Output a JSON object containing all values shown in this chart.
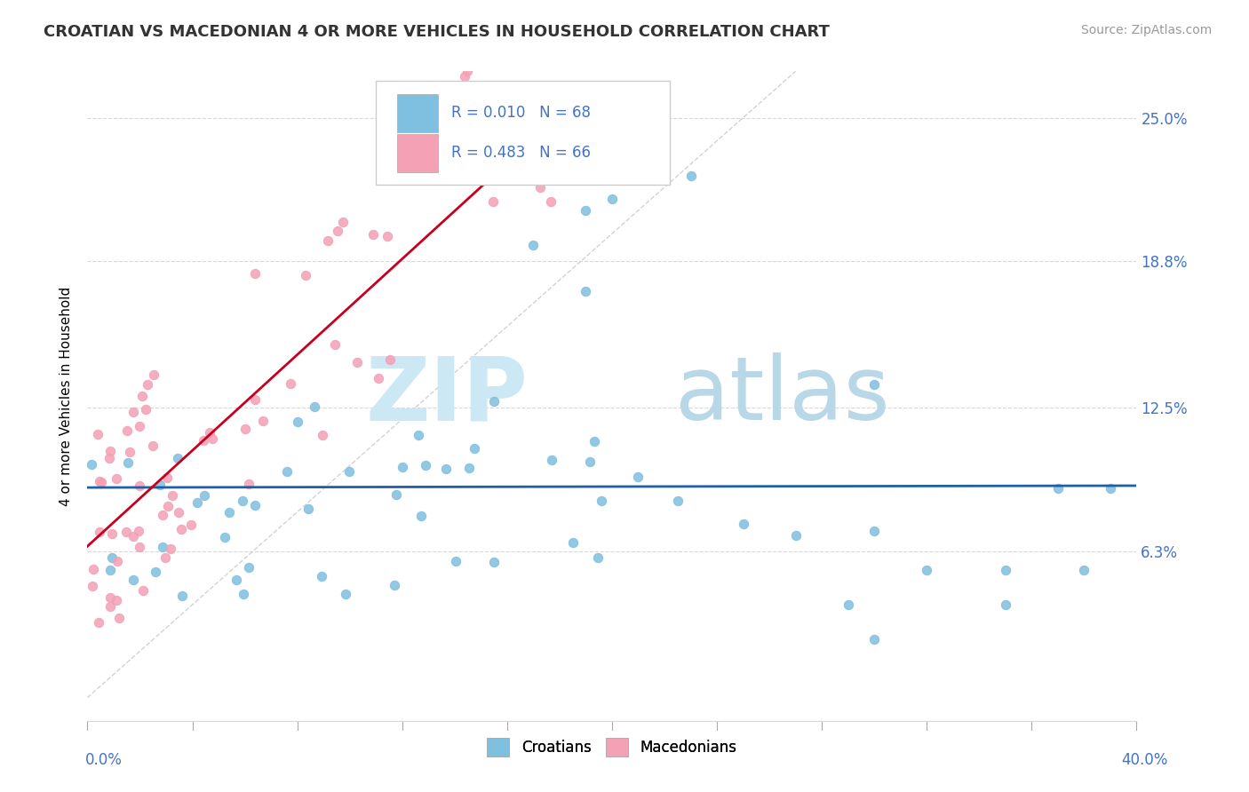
{
  "title": "CROATIAN VS MACEDONIAN 4 OR MORE VEHICLES IN HOUSEHOLD CORRELATION CHART",
  "source": "Source: ZipAtlas.com",
  "ylabel": "4 or more Vehicles in Household",
  "ytick_labels": [
    "6.3%",
    "12.5%",
    "18.8%",
    "25.0%"
  ],
  "ytick_values": [
    0.063,
    0.125,
    0.188,
    0.25
  ],
  "xlim": [
    0.0,
    0.4
  ],
  "ylim": [
    -0.01,
    0.27
  ],
  "color_croatian": "#7fbfdf",
  "color_macedonian": "#f4a0b5",
  "color_blue_line": "#1f5fa6",
  "color_pink_line": "#c8001e",
  "color_grid": "#d8d8d8",
  "color_diag": "#c0c0c0",
  "color_right_tick": "#4472c4",
  "legend_text_color": "#4472c4",
  "watermark_zip_color": "#cde8f5",
  "watermark_atlas_color": "#b8d8e8",
  "cro_seed": 101,
  "mac_seed": 202
}
